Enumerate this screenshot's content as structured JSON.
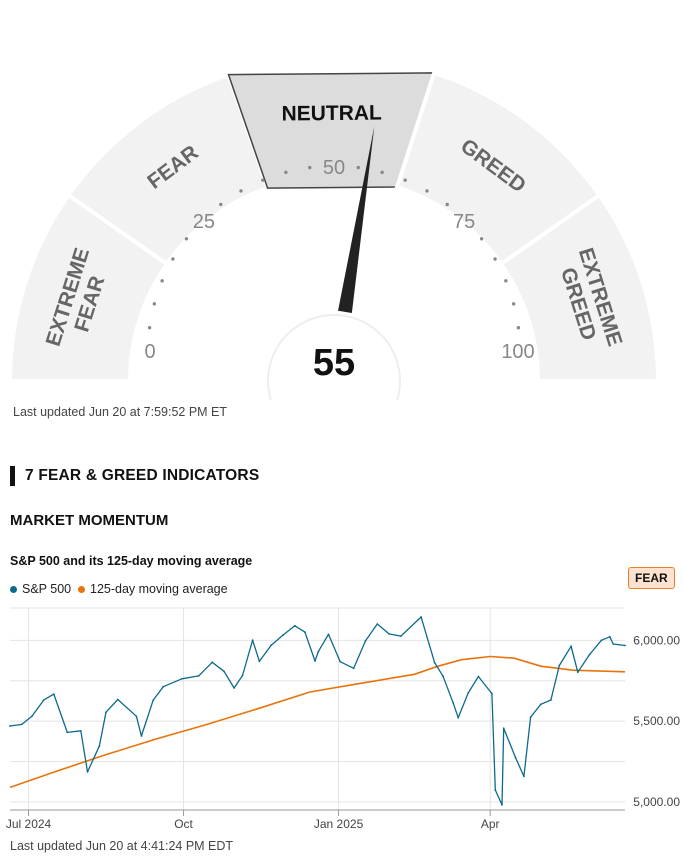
{
  "gauge": {
    "value": "55",
    "score": 55,
    "min_label": "0",
    "scale": [
      "0",
      "25",
      "50",
      "75",
      "100"
    ],
    "segments": [
      {
        "label": "EXTREME FEAR",
        "lines": [
          "EXTREME",
          "FEAR"
        ]
      },
      {
        "label": "FEAR",
        "lines": [
          "FEAR"
        ]
      },
      {
        "label": "NEUTRAL",
        "lines": [
          "NEUTRAL"
        ],
        "active": true
      },
      {
        "label": "GREED",
        "lines": [
          "GREED"
        ]
      },
      {
        "label": "EXTREME GREED",
        "lines": [
          "EXTREME",
          "GREED"
        ]
      }
    ],
    "colors": {
      "segment": "#f2f2f2",
      "active": "#dcdcdc",
      "text": "#666666",
      "needle": "#222222"
    }
  },
  "updated_top": "Last updated Jun 20 at 7:59:52 PM ET",
  "section_title": "7 FEAR & GREED INDICATORS",
  "indicator_title": "MARKET MOMENTUM",
  "chart_title": "S&P 500 and its 125-day moving average",
  "rating_badge": "FEAR",
  "legend": {
    "sp500": "S&P 500",
    "ma": "125-day moving average"
  },
  "updated_bottom": "Last updated Jun 20 at 4:41:24 PM EDT",
  "chart_data": {
    "type": "line",
    "title": "S&P 500 and its 125-day moving average",
    "x_ticks": [
      "Jul 2024",
      "Oct",
      "Jan 2025",
      "Apr"
    ],
    "y_ticks": [
      "5,000.00",
      "5,500.00",
      "6,000.00"
    ],
    "ylim": [
      4950,
      6200
    ],
    "colors": {
      "sp500": "#0e6a8c",
      "ma": "#e8730c"
    },
    "series": [
      {
        "name": "S&P 500",
        "x": [
          "2024-06-20",
          "2024-06-27",
          "2024-07-03",
          "2024-07-10",
          "2024-07-16",
          "2024-07-24",
          "2024-08-01",
          "2024-08-05",
          "2024-08-12",
          "2024-08-16",
          "2024-08-23",
          "2024-09-03",
          "2024-09-06",
          "2024-09-13",
          "2024-09-19",
          "2024-09-30",
          "2024-10-10",
          "2024-10-18",
          "2024-10-25",
          "2024-10-31",
          "2024-11-05",
          "2024-11-11",
          "2024-11-15",
          "2024-11-22",
          "2024-11-29",
          "2024-12-06",
          "2024-12-12",
          "2024-12-18",
          "2024-12-20",
          "2024-12-26",
          "2025-01-02",
          "2025-01-10",
          "2025-01-17",
          "2025-01-24",
          "2025-01-31",
          "2025-02-07",
          "2025-02-19",
          "2025-02-27",
          "2025-03-04",
          "2025-03-10",
          "2025-03-13",
          "2025-03-19",
          "2025-03-25",
          "2025-04-02",
          "2025-04-04",
          "2025-04-08",
          "2025-04-09",
          "2025-04-16",
          "2025-04-21",
          "2025-04-25",
          "2025-05-01",
          "2025-05-07",
          "2025-05-12",
          "2025-05-19",
          "2025-05-23",
          "2025-05-30",
          "2025-06-06",
          "2025-06-11",
          "2025-06-13",
          "2025-06-20"
        ],
        "values": [
          5470,
          5480,
          5530,
          5630,
          5667,
          5430,
          5440,
          5186,
          5345,
          5555,
          5634,
          5530,
          5408,
          5630,
          5713,
          5762,
          5780,
          5864,
          5808,
          5705,
          5782,
          6001,
          5870,
          5970,
          6032,
          6090,
          6051,
          5872,
          5930,
          6037,
          5868,
          5827,
          5997,
          6101,
          6040,
          6026,
          6144,
          5862,
          5778,
          5614,
          5521,
          5675,
          5776,
          5670,
          5074,
          4982,
          5456,
          5275,
          5158,
          5525,
          5604,
          5631,
          5844,
          5963,
          5803,
          5912,
          6000,
          6022,
          5977,
          5968
        ]
      },
      {
        "name": "125-day moving average",
        "x": [
          "2024-06-20",
          "2024-07-15",
          "2024-08-15",
          "2024-09-15",
          "2024-10-15",
          "2024-11-15",
          "2024-12-15",
          "2025-01-15",
          "2025-02-15",
          "2025-03-01",
          "2025-03-15",
          "2025-04-01",
          "2025-04-15",
          "2025-05-01",
          "2025-05-20",
          "2025-06-20"
        ],
        "values": [
          5090,
          5180,
          5290,
          5390,
          5480,
          5580,
          5680,
          5735,
          5790,
          5840,
          5880,
          5900,
          5890,
          5840,
          5815,
          5805
        ]
      }
    ]
  }
}
